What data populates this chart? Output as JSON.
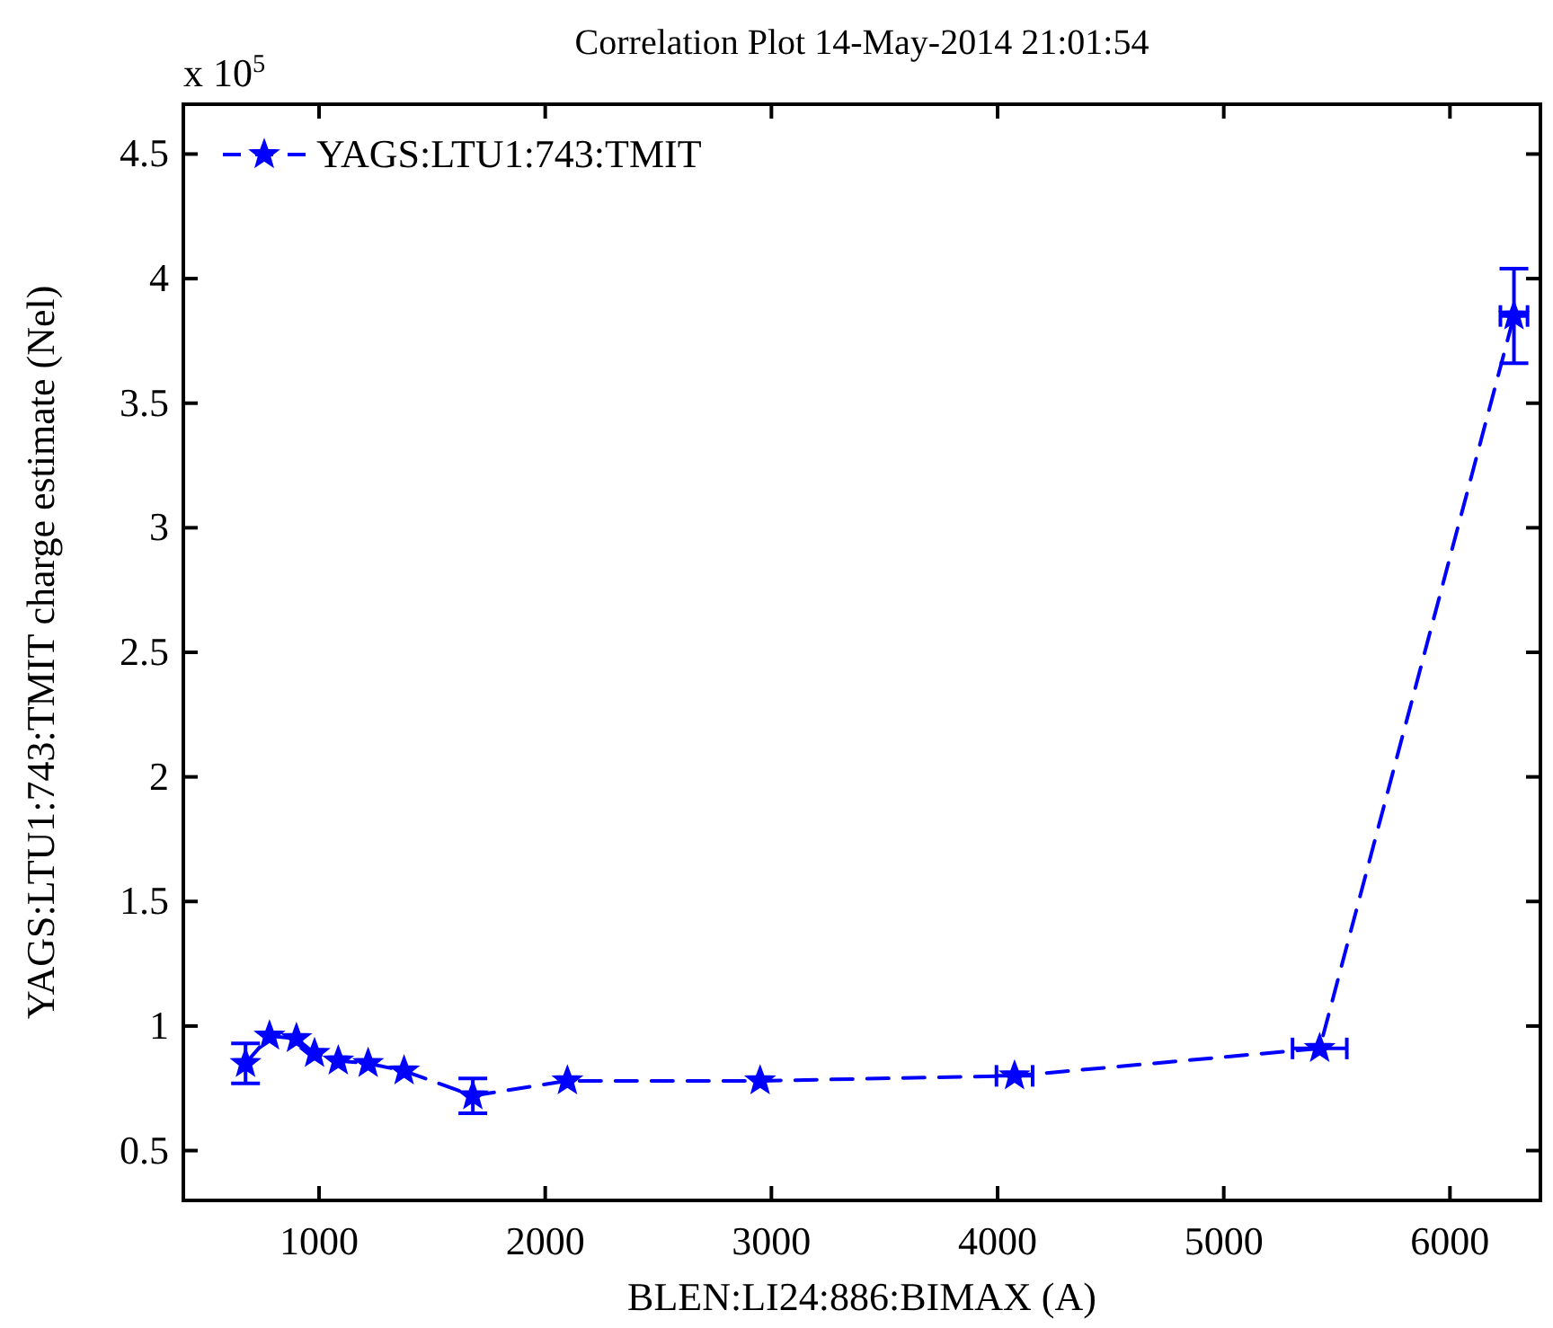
{
  "chart_data": {
    "type": "line",
    "title": "Correlation Plot 14-May-2014 21:01:54",
    "xlabel": "BLEN:LI24:886:BIMAX  (A)",
    "ylabel": "YAGS:LTU1:743:TMIT charge estimate (Nel)",
    "annotations": [
      "x 10$^{5}$"
    ],
    "x": [
      675,
      781,
      900,
      980,
      1085,
      1217,
      1376,
      1680,
      2098,
      2950,
      4075,
      5424,
      6283
    ],
    "series": [
      {
        "name": "YAGS:LTU1:743:TMIT",
        "color": "#0000ff",
        "values": [
          0.85,
          0.96,
          0.95,
          0.89,
          0.86,
          0.85,
          0.82,
          0.72,
          0.78,
          0.78,
          0.8,
          0.91,
          3.85
        ],
        "errors": [
          0.08,
          null,
          null,
          null,
          null,
          null,
          null,
          0.07,
          null,
          null,
          null,
          null,
          0.19
        ],
        "xerrors": [
          null,
          null,
          null,
          null,
          null,
          null,
          null,
          null,
          null,
          null,
          80,
          120,
          60
        ]
      }
    ],
    "xlim": [
      400,
      6400
    ],
    "xticks": [
      1000,
      2000,
      3000,
      4000,
      5000,
      6000
    ],
    "ylim": [
      0.3,
      4.7
    ],
    "yticks": [
      0.5,
      1,
      1.5,
      2,
      2.5,
      3,
      3.5,
      4,
      4.5
    ],
    "grid": false,
    "legend": "top left",
    "marker": "star",
    "line_style": "dashed"
  }
}
